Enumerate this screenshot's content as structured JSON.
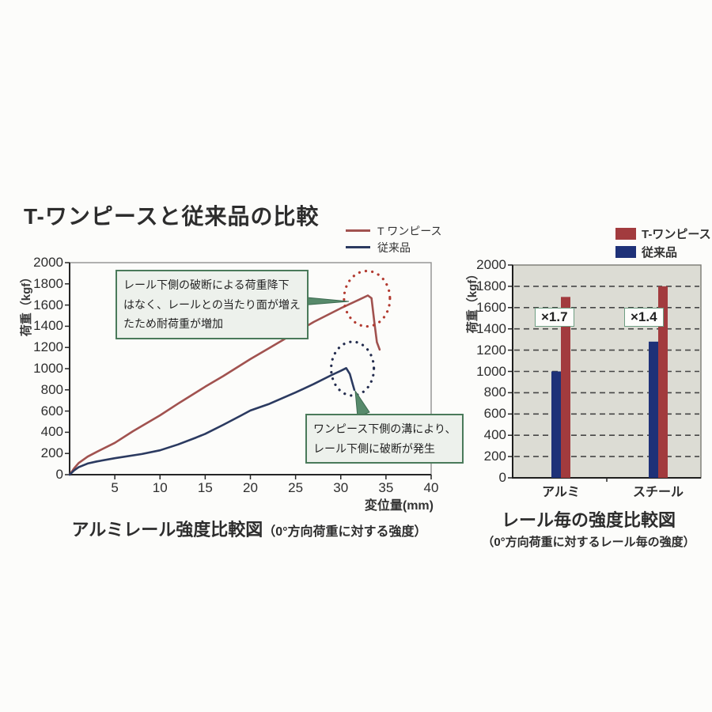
{
  "title": "T-ワンピースと従来品の比較",
  "left_chart": {
    "legend": [
      {
        "label": "T ワンピース",
        "color": "#a1524f"
      },
      {
        "label": "従来品",
        "color": "#2b3a60"
      }
    ],
    "y_axis_title": "荷重（kgf）",
    "x_axis_title": "変位量(mm)",
    "annotation1_lines": [
      "レール下側の破断による荷重降下",
      "はなく、レールとの当たり面が増え",
      "たため耐荷重が増加"
    ],
    "annotation2_lines": [
      "ワンピース下側の溝により、",
      "レール下側に破断が発生"
    ],
    "caption_main": "アルミレール強度比較図",
    "caption_sub": "（0°方向荷重に対する強度）"
  },
  "right_chart": {
    "legend": [
      {
        "label": "T-ワンピース",
        "color": "#a23b3e"
      },
      {
        "label": "従来品",
        "color": "#1e3178"
      }
    ],
    "y_axis_title": "荷重（kgf）",
    "ratio_labels": [
      "×1.7",
      "×1.4"
    ],
    "caption_line1": "レール毎の強度比較図",
    "caption_line2": "（0°方向荷重に対するレール毎の強度）"
  },
  "colors": {
    "line_red": "#a1524f",
    "line_blue": "#2b3a60",
    "bar_red": "#a23b3e",
    "bar_blue": "#1e3178",
    "annotation_green_border": "#4a7a5a",
    "annotation_green_bg": "#edf1ec",
    "right_plot_bg": "#dcdcd4",
    "dotted_circle_red": "#b23a30",
    "dotted_circle_navy": "#232c4e"
  },
  "chart_data": [
    {
      "type": "line",
      "title": "T-ワンピースと従来品の比較",
      "xlabel": "変位量(mm)",
      "ylabel": "荷重（kgf）",
      "xlim": [
        0,
        40
      ],
      "ylim": [
        0,
        2000
      ],
      "x_ticks": [
        0,
        5,
        10,
        15,
        20,
        25,
        30,
        35,
        40
      ],
      "y_ticks": [
        0,
        200,
        400,
        600,
        800,
        1000,
        1200,
        1400,
        1600,
        1800,
        2000
      ],
      "grid": false,
      "legend_position": "top-right-outside",
      "series": [
        {
          "name": "T ワンピース",
          "color": "#a1524f",
          "points": [
            [
              0,
              0
            ],
            [
              0.5,
              60
            ],
            [
              1,
              110
            ],
            [
              2,
              170
            ],
            [
              3,
              215
            ],
            [
              5,
              300
            ],
            [
              7,
              410
            ],
            [
              10,
              560
            ],
            [
              12,
              670
            ],
            [
              15,
              830
            ],
            [
              17,
              930
            ],
            [
              20,
              1090
            ],
            [
              22,
              1190
            ],
            [
              25,
              1340
            ],
            [
              27,
              1440
            ],
            [
              30,
              1570
            ],
            [
              32,
              1650
            ],
            [
              33,
              1690
            ],
            [
              33.4,
              1665
            ],
            [
              33.7,
              1450
            ],
            [
              34,
              1250
            ],
            [
              34.3,
              1180
            ]
          ],
          "peak": {
            "x": 33,
            "y": 1690
          },
          "annotation": "レール下側の破断による荷重降下はなく、レールとの当たり面が増えたため耐荷重が増加"
        },
        {
          "name": "従来品",
          "color": "#2b3a60",
          "points": [
            [
              0,
              0
            ],
            [
              0.5,
              40
            ],
            [
              1,
              70
            ],
            [
              2,
              105
            ],
            [
              3,
              125
            ],
            [
              5,
              155
            ],
            [
              8,
              195
            ],
            [
              10,
              230
            ],
            [
              12,
              285
            ],
            [
              14,
              350
            ],
            [
              15,
              385
            ],
            [
              17,
              470
            ],
            [
              19,
              560
            ],
            [
              20,
              605
            ],
            [
              22,
              665
            ],
            [
              25,
              775
            ],
            [
              27,
              855
            ],
            [
              29,
              940
            ],
            [
              30,
              980
            ],
            [
              30.6,
              1005
            ],
            [
              31,
              950
            ],
            [
              31.3,
              860
            ],
            [
              31.5,
              800
            ]
          ],
          "peak": {
            "x": 30.6,
            "y": 1005
          },
          "annotation": "ワンピース下側の溝により、レール下側に破断が発生"
        }
      ],
      "caption": "アルミレール強度比較図（0°方向荷重に対する強度）"
    },
    {
      "type": "bar",
      "categories": [
        "アルミ",
        "スチール"
      ],
      "series": [
        {
          "name": "T-ワンピース",
          "color": "#a23b3e",
          "values": [
            1700,
            1800
          ]
        },
        {
          "name": "従来品",
          "color": "#1e3178",
          "values": [
            1000,
            1280
          ]
        }
      ],
      "ratio_labels": [
        "×1.7",
        "×1.4"
      ],
      "ylabel": "荷重（kgf）",
      "ylim": [
        0,
        2000
      ],
      "y_tick_step": 200,
      "grid": "horizontal-dashed",
      "legend_position": "top-right-outside",
      "caption": "レール毎の強度比較図（0°方向荷重に対するレール毎の強度）"
    }
  ]
}
